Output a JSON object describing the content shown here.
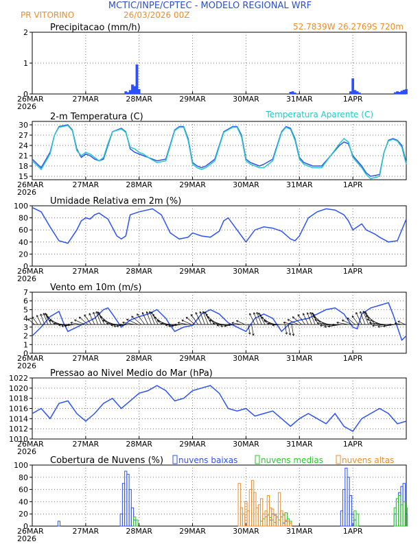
{
  "header": {
    "title": "MCTIC/INPE/CPTEC  -  MODELO REGIONAL WRF",
    "location": "PR VITORINO",
    "run": "26/03/2026 00Z",
    "coords": "52.7839W  26.2769S  720m"
  },
  "colors": {
    "title": "#2b50c8",
    "orange": "#f08c28",
    "blue": "#2b50ff",
    "cyan": "#22c8c8",
    "green": "#22cc22",
    "grid": "#777777"
  },
  "x_axis": {
    "start": "26MAR",
    "year": "2026",
    "ticks": [
      "26MAR",
      "27MAR",
      "28MAR",
      "29MAR",
      "30MAR",
      "31MAR",
      "1APR"
    ],
    "hours": [
      0,
      24,
      48,
      72,
      96,
      120,
      144,
      168
    ]
  },
  "chart_data": [
    {
      "id": "precip",
      "type": "bar",
      "title": "Precipitacao (mm/h)",
      "ylim": [
        0,
        2
      ],
      "yticks": [
        0,
        1,
        2
      ],
      "points": [
        [
          42,
          0.08
        ],
        [
          43,
          0.05
        ],
        [
          44,
          0.12
        ],
        [
          45,
          0.3
        ],
        [
          46,
          0.25
        ],
        [
          47,
          0.95
        ],
        [
          48,
          0.15
        ],
        [
          116,
          0.06
        ],
        [
          117,
          0.08
        ],
        [
          118,
          0.04
        ],
        [
          143,
          0.08
        ],
        [
          144,
          0.5
        ],
        [
          145,
          0.12
        ],
        [
          146,
          0.08
        ],
        [
          147,
          0.04
        ],
        [
          163,
          0.05
        ],
        [
          164,
          0.08
        ],
        [
          165,
          0.06
        ],
        [
          166,
          0.1
        ],
        [
          167,
          0.13
        ],
        [
          168,
          0.15
        ]
      ]
    },
    {
      "id": "temp",
      "type": "line",
      "title": "2-m Temperatura (C)",
      "legend": "Temperatura Aparente (C)",
      "ylim": [
        14,
        31
      ],
      "yticks": [
        15,
        18,
        21,
        24,
        27,
        30
      ],
      "series": [
        {
          "name": "2-m Temperatura",
          "color": "blue",
          "x": [
            0,
            4,
            8,
            10,
            12,
            16,
            18,
            20,
            22,
            24,
            26,
            28,
            30,
            32,
            34,
            36,
            40,
            42,
            44,
            46,
            48,
            50,
            52,
            56,
            60,
            64,
            66,
            68,
            70,
            72,
            74,
            76,
            78,
            82,
            86,
            90,
            92,
            94,
            96,
            98,
            100,
            102,
            104,
            108,
            112,
            114,
            116,
            118,
            120,
            122,
            124,
            126,
            130,
            134,
            138,
            140,
            142,
            144,
            146,
            148,
            150,
            152,
            156,
            158,
            160,
            162,
            164,
            166,
            168
          ],
          "y": [
            20,
            17.5,
            22,
            27,
            29.5,
            30,
            28.5,
            23,
            20.5,
            21.5,
            21,
            20,
            19.5,
            20,
            24,
            28,
            29,
            28,
            23,
            22,
            21.5,
            21,
            20.5,
            19.5,
            20,
            28.5,
            29.5,
            29.5,
            26,
            19,
            18,
            17.5,
            18,
            20,
            28,
            29.5,
            29.5,
            27,
            20,
            19,
            18.5,
            18,
            18.5,
            20,
            28,
            29.5,
            29,
            26,
            20.5,
            19,
            18.5,
            18,
            18,
            21,
            24,
            25,
            24.5,
            21,
            19.5,
            18,
            16,
            15,
            15.5,
            22,
            25.5,
            26,
            25.5,
            24,
            19
          ]
        },
        {
          "name": "Temperatura Aparente",
          "color": "cyan",
          "x": [
            0,
            4,
            8,
            10,
            12,
            16,
            18,
            20,
            22,
            24,
            26,
            28,
            30,
            32,
            34,
            36,
            40,
            42,
            44,
            46,
            48,
            50,
            52,
            56,
            60,
            64,
            66,
            68,
            70,
            72,
            74,
            76,
            78,
            82,
            86,
            90,
            92,
            94,
            96,
            98,
            100,
            102,
            104,
            108,
            112,
            114,
            116,
            118,
            120,
            122,
            124,
            126,
            130,
            134,
            138,
            140,
            142,
            144,
            146,
            148,
            150,
            152,
            156,
            158,
            160,
            162,
            164,
            166,
            168
          ],
          "y": [
            19.5,
            17,
            21.5,
            27,
            29.3,
            29.8,
            28.3,
            22.5,
            21,
            22,
            21.5,
            20.5,
            19.5,
            20.5,
            24.5,
            28,
            28.8,
            27.8,
            23.5,
            23,
            22,
            21.5,
            20.5,
            19,
            19.5,
            28.3,
            29.3,
            29.3,
            25.5,
            18.5,
            17.5,
            17,
            17.5,
            19.5,
            27.8,
            29.3,
            29.3,
            26.5,
            19.5,
            18.5,
            18,
            17.5,
            17.5,
            19.5,
            27.8,
            29.3,
            28.7,
            25.5,
            20,
            18.5,
            18,
            17.5,
            17.5,
            21,
            24.5,
            26,
            25,
            20.5,
            19,
            17.5,
            15.5,
            14.3,
            15,
            22,
            25.3,
            25.8,
            25.3,
            23.5,
            18.5
          ]
        }
      ]
    },
    {
      "id": "rh",
      "type": "line",
      "title": "Umidade Relativa em 2m (%)",
      "ylim": [
        0,
        100
      ],
      "yticks": [
        0,
        20,
        40,
        60,
        80,
        100
      ],
      "series": [
        {
          "name": "Umidade",
          "color": "blue",
          "x": [
            0,
            4,
            8,
            12,
            16,
            20,
            22,
            24,
            26,
            28,
            30,
            34,
            38,
            40,
            42,
            44,
            48,
            54,
            58,
            62,
            66,
            70,
            72,
            76,
            80,
            84,
            86,
            88,
            90,
            94,
            96,
            100,
            104,
            108,
            112,
            116,
            118,
            120,
            124,
            128,
            132,
            136,
            140,
            142,
            144,
            146,
            148,
            150,
            154,
            156,
            160,
            164,
            168
          ],
          "y": [
            97,
            90,
            65,
            42,
            38,
            60,
            75,
            80,
            78,
            85,
            88,
            78,
            50,
            45,
            50,
            85,
            90,
            95,
            85,
            55,
            45,
            48,
            55,
            50,
            48,
            58,
            75,
            80,
            70,
            50,
            40,
            60,
            65,
            63,
            58,
            45,
            42,
            50,
            80,
            90,
            95,
            93,
            85,
            75,
            60,
            65,
            70,
            60,
            53,
            48,
            40,
            42,
            78
          ]
        }
      ]
    },
    {
      "id": "wind",
      "type": "line",
      "title": "Vento em 10m (m/s)",
      "ylim": [
        0,
        7
      ],
      "yticks": [
        0,
        1,
        2,
        3,
        4,
        5,
        6,
        7
      ],
      "arrow_baseline": 3.3,
      "series": [
        {
          "name": "Vento",
          "color": "blue",
          "x": [
            0,
            4,
            8,
            12,
            14,
            16,
            20,
            24,
            28,
            32,
            34,
            36,
            40,
            44,
            48,
            52,
            56,
            60,
            62,
            64,
            68,
            72,
            76,
            80,
            84,
            88,
            92,
            96,
            100,
            104,
            108,
            112,
            116,
            120,
            124,
            128,
            132,
            136,
            140,
            144,
            146,
            148,
            152,
            156,
            160,
            162,
            164,
            166,
            168
          ],
          "y": [
            2,
            3,
            4.2,
            4.8,
            3.5,
            2.5,
            3,
            3.5,
            4,
            5,
            5.2,
            4.5,
            3,
            3.8,
            4.2,
            4.5,
            5,
            4,
            3.2,
            2.5,
            3,
            3.2,
            4.5,
            5,
            4.5,
            3.5,
            3,
            2.5,
            4,
            4.5,
            4,
            2.5,
            3.5,
            3.8,
            4,
            4.5,
            5,
            5.2,
            4.5,
            3,
            2.8,
            4.5,
            5.2,
            5.5,
            5.8,
            4.5,
            3,
            1.5,
            2
          ]
        }
      ]
    },
    {
      "id": "pressure",
      "type": "line",
      "title": "Pressao ao Nivel Medio do Mar (hPa)",
      "ylim": [
        1010,
        1022
      ],
      "yticks": [
        1010,
        1012,
        1014,
        1016,
        1018,
        1020,
        1022
      ],
      "series": [
        {
          "name": "Pressao",
          "color": "blue",
          "x": [
            0,
            4,
            8,
            12,
            16,
            20,
            24,
            28,
            32,
            36,
            40,
            44,
            48,
            52,
            56,
            60,
            64,
            68,
            72,
            76,
            80,
            84,
            88,
            92,
            96,
            100,
            104,
            108,
            112,
            116,
            120,
            124,
            128,
            132,
            136,
            140,
            144,
            148,
            152,
            156,
            160,
            164,
            168
          ],
          "y": [
            1015,
            1016,
            1014,
            1017,
            1017.5,
            1015,
            1013.5,
            1015,
            1017,
            1018,
            1016,
            1017.5,
            1019,
            1019.5,
            1020.5,
            1019.5,
            1017.5,
            1018,
            1019.5,
            1020,
            1020.5,
            1019,
            1016,
            1015.5,
            1016,
            1014.5,
            1015,
            1015.5,
            1014,
            1012.5,
            1014,
            1015,
            1014,
            1013,
            1015,
            1012.5,
            1011.5,
            1014,
            1015,
            1016,
            1015,
            1013,
            1013.5
          ]
        }
      ]
    },
    {
      "id": "clouds",
      "type": "bar",
      "title": "Cobertura de Nuvens (%)",
      "ylim": [
        0,
        100
      ],
      "yticks": [
        0,
        20,
        40,
        60,
        80,
        100
      ],
      "legend": [
        "nuvens baixas",
        "nuvens medias",
        "nuvens altas"
      ],
      "series": [
        {
          "name": "nuvens baixas",
          "color": "blue",
          "style": "outline",
          "points": [
            [
              12,
              8
            ],
            [
              40,
              20
            ],
            [
              41,
              70
            ],
            [
              42,
              90
            ],
            [
              43,
              85
            ],
            [
              44,
              60
            ],
            [
              45,
              30
            ],
            [
              46,
              10
            ],
            [
              107,
              10
            ],
            [
              108,
              20
            ],
            [
              109,
              18
            ],
            [
              110,
              15
            ],
            [
              113,
              5
            ],
            [
              114,
              8
            ],
            [
              139,
              25
            ],
            [
              140,
              60
            ],
            [
              141,
              95
            ],
            [
              142,
              80
            ],
            [
              143,
              50
            ],
            [
              144,
              20
            ],
            [
              145,
              10
            ],
            [
              163,
              20
            ],
            [
              164,
              45
            ],
            [
              165,
              55
            ],
            [
              166,
              65
            ],
            [
              167,
              70
            ],
            [
              168,
              20
            ]
          ]
        },
        {
          "name": "nuvens medias",
          "color": "green",
          "style": "outline",
          "points": [
            [
              46,
              15
            ],
            [
              47,
              10
            ],
            [
              103,
              8
            ],
            [
              104,
              12
            ],
            [
              105,
              15
            ],
            [
              106,
              18
            ],
            [
              107,
              14
            ],
            [
              108,
              10
            ],
            [
              109,
              6
            ],
            [
              111,
              10
            ],
            [
              112,
              15
            ],
            [
              113,
              18
            ],
            [
              114,
              22
            ],
            [
              115,
              12
            ],
            [
              116,
              8
            ],
            [
              145,
              25
            ],
            [
              146,
              20
            ],
            [
              163,
              30
            ],
            [
              164,
              45
            ],
            [
              165,
              50
            ],
            [
              166,
              35
            ],
            [
              167,
              40
            ],
            [
              168,
              30
            ]
          ]
        },
        {
          "name": "nuvens altas",
          "color": "orange",
          "style": "outline",
          "points": [
            [
              93,
              70
            ],
            [
              94,
              30
            ],
            [
              95,
              20
            ],
            [
              96,
              40
            ],
            [
              97,
              25
            ],
            [
              98,
              60
            ],
            [
              99,
              75
            ],
            [
              100,
              55
            ],
            [
              101,
              30
            ],
            [
              102,
              35
            ],
            [
              103,
              45
            ],
            [
              104,
              20
            ],
            [
              105,
              25
            ],
            [
              106,
              50
            ],
            [
              107,
              30
            ],
            [
              108,
              28
            ],
            [
              109,
              20
            ],
            [
              110,
              15
            ],
            [
              111,
              55
            ],
            [
              112,
              25
            ],
            [
              113,
              20
            ],
            [
              114,
              10
            ],
            [
              115,
              8
            ],
            [
              116,
              5
            ]
          ]
        }
      ]
    }
  ]
}
